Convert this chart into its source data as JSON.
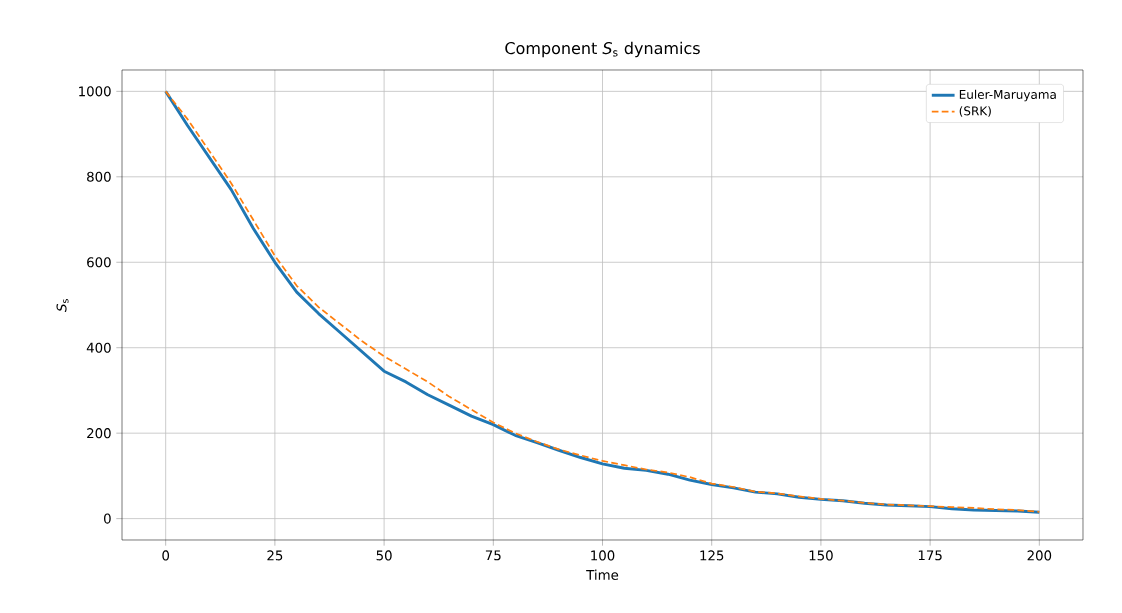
{
  "chart_data": {
    "type": "line",
    "title": "Component *S*$_{s}$ dynamics",
    "xlabel": "Time",
    "ylabel": "*S*$_{s}$",
    "x": [
      0,
      5,
      10,
      15,
      20,
      25,
      30,
      35,
      40,
      45,
      50,
      55,
      60,
      65,
      70,
      75,
      80,
      85,
      90,
      95,
      100,
      105,
      110,
      115,
      120,
      125,
      130,
      135,
      140,
      145,
      150,
      155,
      160,
      165,
      170,
      175,
      180,
      185,
      190,
      195,
      200
    ],
    "series": [
      {
        "name": "Euler-Maruyama",
        "color": "#1f77b4",
        "line_style": "solid",
        "values": [
          1000,
          920,
          845,
          770,
          680,
          600,
          530,
          480,
          435,
          390,
          345,
          320,
          290,
          265,
          240,
          220,
          195,
          178,
          160,
          143,
          128,
          118,
          113,
          104,
          90,
          80,
          72,
          62,
          58,
          50,
          45,
          42,
          36,
          32,
          30,
          28,
          23,
          20,
          19,
          18,
          15
        ]
      },
      {
        "name": "(SRK)",
        "color": "#ff7f0e",
        "line_style": "dashed",
        "values": [
          1000,
          935,
          860,
          785,
          700,
          615,
          545,
          495,
          455,
          415,
          380,
          350,
          320,
          285,
          255,
          225,
          200,
          180,
          162,
          148,
          135,
          125,
          115,
          108,
          97,
          82,
          74,
          63,
          59,
          52,
          46,
          42,
          37,
          33,
          31,
          29,
          27,
          25,
          22,
          20,
          16
        ]
      }
    ],
    "xlim": [
      -10,
      210
    ],
    "ylim": [
      -50,
      1050
    ],
    "xticks": [
      0,
      25,
      50,
      75,
      100,
      125,
      150,
      175,
      200
    ],
    "yticks": [
      0,
      200,
      400,
      600,
      800,
      1000
    ],
    "grid": true,
    "legend": "top right",
    "marker": "none"
  }
}
